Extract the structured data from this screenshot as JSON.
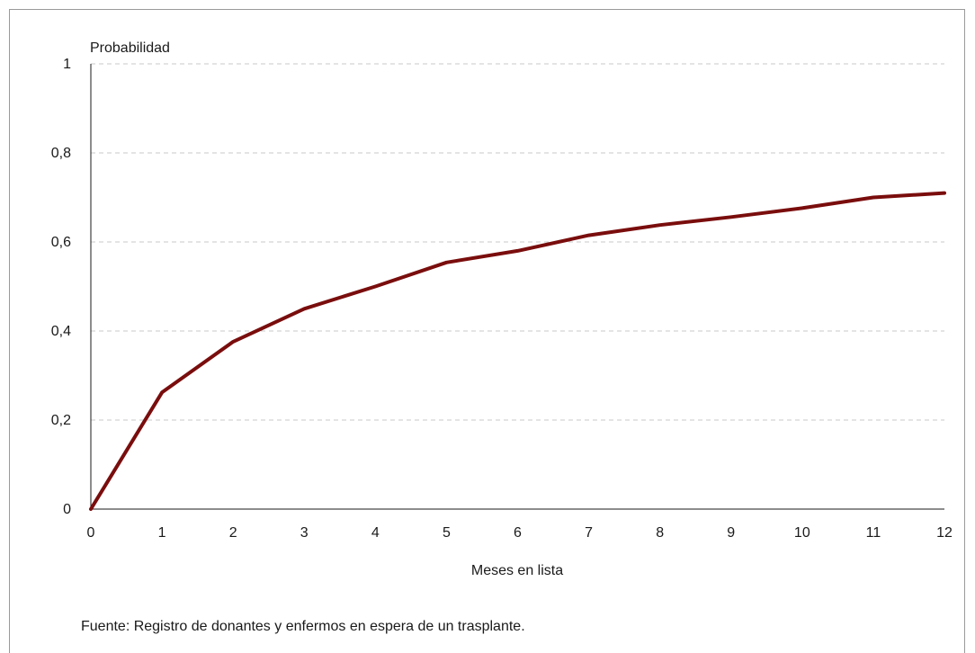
{
  "chart_data": {
    "type": "line",
    "ylabel": "Probabilidad",
    "xlabel": "Meses en lista",
    "x": [
      0,
      1,
      2,
      3,
      4,
      5,
      6,
      7,
      8,
      9,
      10,
      11,
      12
    ],
    "series": [
      {
        "values": [
          0,
          0.262,
          0.376,
          0.45,
          0.5,
          0.554,
          0.58,
          0.615,
          0.638,
          0.656,
          0.676,
          0.7,
          0.71
        ]
      }
    ],
    "xlim": [
      0,
      12
    ],
    "ylim": [
      0,
      1
    ],
    "xticks": [
      "0",
      "1",
      "2",
      "3",
      "4",
      "5",
      "6",
      "7",
      "8",
      "9",
      "10",
      "11",
      "12"
    ],
    "yticks": [
      {
        "value": 0,
        "label": "0"
      },
      {
        "value": 0.2,
        "label": "0,2"
      },
      {
        "value": 0.4,
        "label": "0,4"
      },
      {
        "value": 0.6,
        "label": "0,6"
      },
      {
        "value": 0.8,
        "label": "0,8"
      },
      {
        "value": 1,
        "label": "1"
      }
    ],
    "grid": true,
    "line_color": "#7a0d0d",
    "grid_color": "#c8c8c8"
  },
  "source_note": "Fuente: Registro de donantes y enfermos en espera de un trasplante."
}
